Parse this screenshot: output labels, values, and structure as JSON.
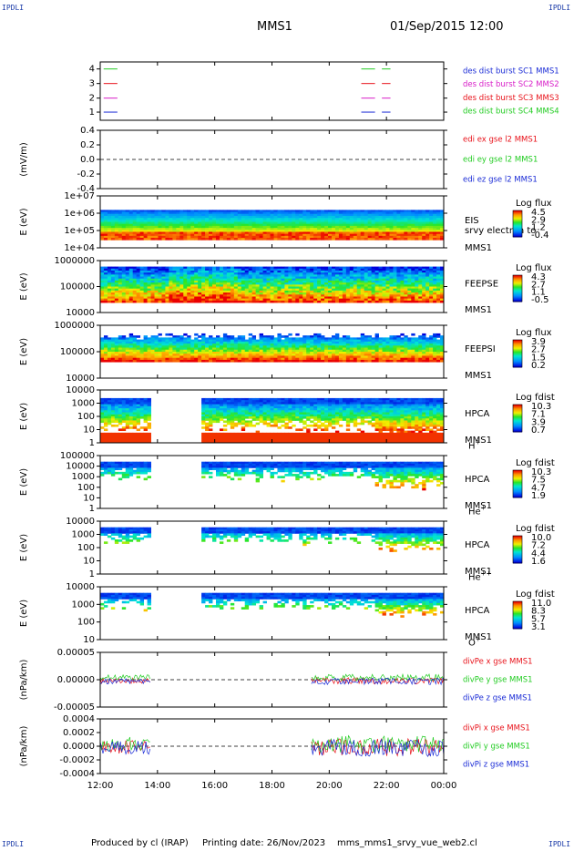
{
  "corner_label": "IPDLI",
  "header": {
    "mission": "MMS1",
    "datetime": "01/Sep/2015 12:00"
  },
  "footer": {
    "produced": "Produced by cl (IRAP)",
    "printing": "Printing date: 26/Nov/2023",
    "file": "mms_mms1_srvy_vue_web2.cl"
  },
  "colors": {
    "c1": "#1a2bd6",
    "c2": "#d81ec8",
    "c3": "#e8121a",
    "c4": "#22cc22",
    "fsdark": "#101088"
  },
  "chart_data": [
    {
      "type": "line",
      "id": "burst",
      "yticks": [
        "4",
        "3",
        "2",
        "1"
      ],
      "legend": [
        {
          "label": "des dist burst SC1 MMS1",
          "color": "#1a2bd6"
        },
        {
          "label": "des dist burst SC2 MMS2",
          "color": "#d81ec8"
        },
        {
          "label": "des dist burst SC3 MMS3",
          "color": "#e8121a"
        },
        {
          "label": "des dist burst SC4 MMS4",
          "color": "#22cc22"
        }
      ]
    },
    {
      "type": "line",
      "id": "edi",
      "ylabel": "(mV/m)",
      "yticks": [
        "0.4",
        "0.2",
        "0.0",
        "-0.2",
        "-0.4"
      ],
      "legend": [
        {
          "label": "edi ex gse l2 MMS1",
          "color": "#e8121a"
        },
        {
          "label": "edi ey gse l2 MMS1",
          "color": "#22cc22"
        },
        {
          "label": "edi ez gse l2 MMS1",
          "color": "#1a2bd6"
        }
      ]
    },
    {
      "type": "heatmap",
      "id": "eis",
      "ylabel": "E (eV)",
      "yticks": [
        "1e+07",
        "1e+06",
        "1e+05",
        "1e+04"
      ],
      "side": [
        "EIS",
        "srvy electron to",
        "MMS1"
      ],
      "cbar_title": "Log flux",
      "cbar_ticks": [
        "4.5",
        "2.9",
        "1.2",
        "-0.4"
      ]
    },
    {
      "type": "heatmap",
      "id": "feepse",
      "ylabel": "E (eV)",
      "yticks": [
        "1000000",
        "100000",
        "10000"
      ],
      "side": [
        "FEEPSE",
        "MMS1"
      ],
      "cbar_title": "Log flux",
      "cbar_ticks": [
        "4.3",
        "2.7",
        "1.1",
        "-0.5"
      ]
    },
    {
      "type": "heatmap",
      "id": "feepsi",
      "ylabel": "E (eV)",
      "yticks": [
        "1000000",
        "100000",
        "10000"
      ],
      "side": [
        "FEEPSI",
        "MMS1"
      ],
      "cbar_title": "Log flux",
      "cbar_ticks": [
        "3.9",
        "2.7",
        "1.5",
        "0.2"
      ]
    },
    {
      "type": "heatmap",
      "id": "hpca_h",
      "ylabel": "E (eV)",
      "yticks": [
        "10000",
        "1000",
        "100",
        "10",
        "1"
      ],
      "side": [
        "HPCA",
        "MMS1"
      ],
      "species": "H",
      "charge": "+",
      "cbar_title": "Log fdist",
      "cbar_ticks": [
        "10.3",
        "7.1",
        "3.9",
        "0.7"
      ]
    },
    {
      "type": "heatmap",
      "id": "hpca_he",
      "ylabel": "E (eV)",
      "yticks": [
        "100000",
        "10000",
        "1000",
        "100",
        "10",
        "1"
      ],
      "side": [
        "HPCA",
        "MMS1"
      ],
      "species": "He",
      "charge": "+",
      "cbar_title": "Log fdist",
      "cbar_ticks": [
        "10.3",
        "7.5",
        "4.7",
        "1.9"
      ]
    },
    {
      "type": "heatmap",
      "id": "hpca_hepp",
      "ylabel": "E (eV)",
      "yticks": [
        "10000",
        "1000",
        "100",
        "10",
        "1"
      ],
      "side": [
        "HPCA",
        "MMS1"
      ],
      "species": "He",
      "charge": "++",
      "cbar_title": "Log fdist",
      "cbar_ticks": [
        "10.0",
        "7.2",
        "4.4",
        "1.6"
      ]
    },
    {
      "type": "heatmap",
      "id": "hpca_o",
      "ylabel": "E (eV)",
      "yticks": [
        "10000",
        "1000",
        "100",
        "10"
      ],
      "side": [
        "HPCA",
        "MMS1"
      ],
      "species": "O",
      "charge": "+",
      "cbar_title": "Log fdist",
      "cbar_ticks": [
        "11.0",
        "8.3",
        "5.7",
        "3.1"
      ]
    },
    {
      "type": "line",
      "id": "divpe",
      "ylabel": "(nPa/km)",
      "yticks": [
        "0.00005",
        "0.00000",
        "-0.00005"
      ],
      "legend": [
        {
          "label": "divPe x gse MMS1",
          "color": "#e8121a"
        },
        {
          "label": "divPe y gse MMS1",
          "color": "#22cc22"
        },
        {
          "label": "divPe z gse MMS1",
          "color": "#1a2bd6"
        }
      ]
    },
    {
      "type": "line",
      "id": "divpi",
      "ylabel": "(nPa/km)",
      "yticks": [
        "0.0004",
        "0.0002",
        "0.0000",
        "-0.0002",
        "-0.0004"
      ],
      "legend": [
        {
          "label": "divPi x gse MMS1",
          "color": "#e8121a"
        },
        {
          "label": "divPi y gse MMS1",
          "color": "#22cc22"
        },
        {
          "label": "divPi z gse MMS1",
          "color": "#1a2bd6"
        }
      ]
    }
  ],
  "time_axis": {
    "ticks": [
      "12:00",
      "14:00",
      "16:00",
      "18:00",
      "20:00",
      "22:00",
      "00:00"
    ]
  }
}
